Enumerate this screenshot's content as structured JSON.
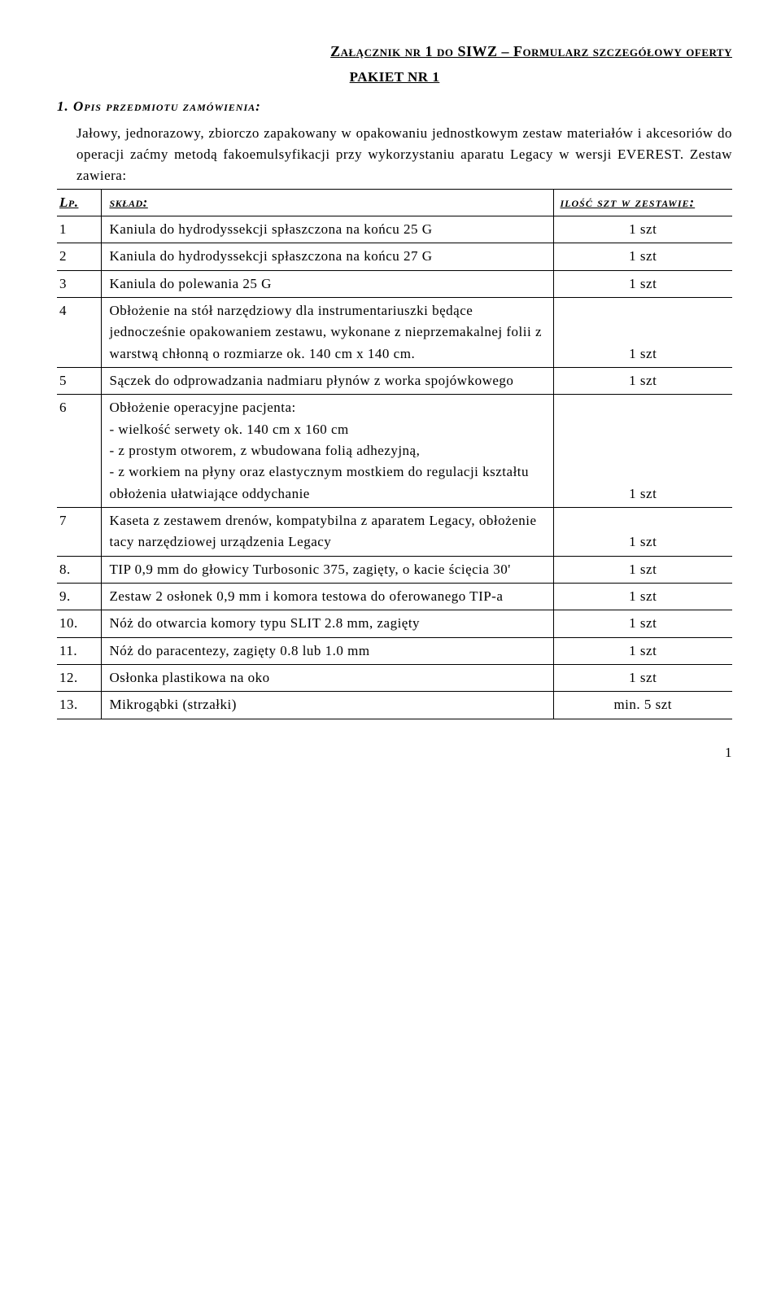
{
  "header": {
    "right": "Załącznik nr 1 do SIWZ – Formularz szczegółowy oferty",
    "center": "PAKIET NR 1"
  },
  "section1": {
    "title": "1. Opis przedmiotu zamówienia:",
    "intro": "Jałowy, jednorazowy, zbiorczo zapakowany w opakowaniu jednostkowym zestaw materiałów i akcesoriów do operacji zaćmy metodą fakoemulsyfikacji przy wykorzystaniu aparatu Legacy w wersji EVEREST. Zestaw zawiera:"
  },
  "table": {
    "head": {
      "lp": "Lp.",
      "sklad": "skład:",
      "qty": "ilość szt w zestawie:"
    },
    "rows": [
      {
        "lp": "1",
        "desc": "Kaniula do hydrodyssekcji spłaszczona na końcu 25 G",
        "qty": "1 szt"
      },
      {
        "lp": "2",
        "desc": "Kaniula do hydrodyssekcji spłaszczona na końcu 27 G",
        "qty": "1 szt"
      },
      {
        "lp": "3",
        "desc": "Kaniula do polewania 25 G",
        "qty": "1 szt"
      },
      {
        "lp": "4",
        "desc": "Obłożenie na stół narzędziowy dla instrumentariuszki będące jednocześnie opakowaniem zestawu, wykonane z nieprzemakalnej folii z warstwą chłonną o rozmiarze ok. 140 cm x 140 cm.",
        "qty": "1 szt"
      },
      {
        "lp": "5",
        "desc": "Sączek do odprowadzania nadmiaru płynów z worka spojówkowego",
        "qty": "1 szt"
      },
      {
        "lp": "6",
        "desc": "Obłożenie operacyjne pacjenta:\n- wielkość serwety ok. 140 cm x 160 cm\n- z prostym otworem, z wbudowana folią adhezyjną,\n- z workiem na płyny oraz elastycznym mostkiem do regulacji kształtu obłożenia ułatwiające oddychanie",
        "qty": "1 szt"
      },
      {
        "lp": "7",
        "desc": "Kaseta z zestawem drenów, kompatybilna z aparatem Legacy, obłożenie tacy narzędziowej urządzenia Legacy",
        "qty": "1 szt"
      },
      {
        "lp": "8.",
        "desc": "TIP 0,9 mm do głowicy Turbosonic 375, zagięty, o kacie ścięcia 30'",
        "qty": "1 szt"
      },
      {
        "lp": "9.",
        "desc": "Zestaw 2 osłonek 0,9 mm i komora testowa do oferowanego TIP-a",
        "qty": "1 szt"
      },
      {
        "lp": "10.",
        "desc": "Nóż do otwarcia komory typu SLIT 2.8 mm, zagięty",
        "qty": "1 szt"
      },
      {
        "lp": "11.",
        "desc": "Nóż do paracentezy, zagięty 0.8 lub 1.0 mm",
        "qty": "1 szt"
      },
      {
        "lp": "12.",
        "desc": "Osłonka plastikowa na oko",
        "qty": "1 szt"
      },
      {
        "lp": "13.",
        "desc": "Mikrogąbki (strzałki)",
        "qty": "min. 5 szt"
      }
    ]
  },
  "page": "1"
}
